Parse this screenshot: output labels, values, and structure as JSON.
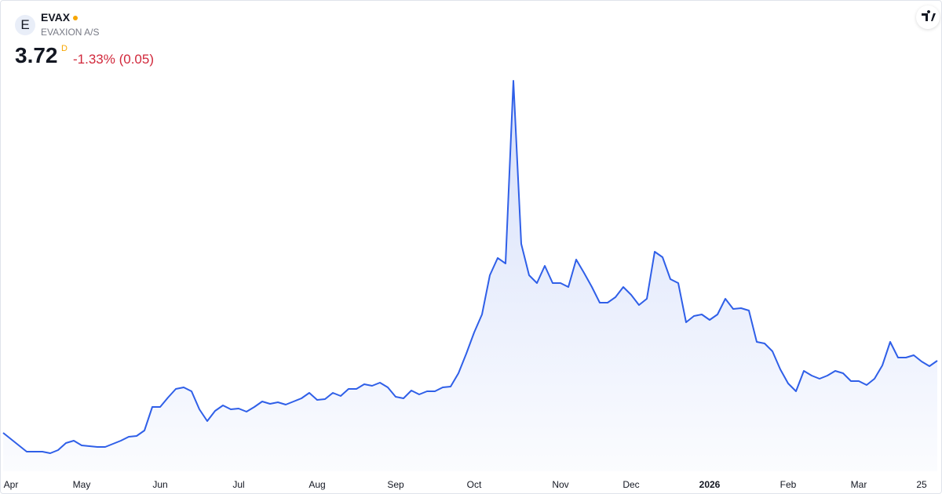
{
  "chart_data": {
    "type": "line",
    "avatar": "E",
    "title": "EVAX",
    "subtitle": "EVAXION A/S",
    "price": 3.72,
    "price_flag": "D",
    "change": "-1.33% (0.05)",
    "color": "#2f5fe8",
    "categories": [
      null,
      "Apr",
      null,
      null,
      null,
      null,
      null,
      null,
      null,
      null,
      "May",
      null,
      null,
      null,
      null,
      null,
      null,
      null,
      null,
      null,
      "Jun",
      null,
      null,
      null,
      null,
      null,
      null,
      null,
      null,
      null,
      "Jul",
      null,
      null,
      null,
      null,
      null,
      null,
      null,
      null,
      null,
      "Aug",
      null,
      null,
      null,
      null,
      null,
      null,
      null,
      null,
      null,
      "Sep",
      null,
      null,
      null,
      null,
      null,
      null,
      null,
      null,
      null,
      "Oct",
      null,
      null,
      null,
      null,
      null,
      null,
      null,
      null,
      null,
      null,
      "Nov",
      null,
      null,
      null,
      null,
      null,
      null,
      null,
      null,
      "Dec",
      null,
      null,
      null,
      null,
      null,
      null,
      null,
      null,
      null,
      "2026",
      null,
      null,
      null,
      null,
      null,
      null,
      null,
      null,
      null,
      "Feb",
      null,
      null,
      null,
      null,
      null,
      null,
      null,
      null,
      "Mar",
      null,
      null,
      null,
      null,
      null,
      null,
      null,
      "25",
      null,
      null
    ],
    "values": [
      1.88,
      1.72,
      1.56,
      1.4,
      1.4,
      1.4,
      1.36,
      1.44,
      1.62,
      1.68,
      1.56,
      1.54,
      1.52,
      1.52,
      1.6,
      1.68,
      1.78,
      1.8,
      1.94,
      2.54,
      2.54,
      2.78,
      3.0,
      3.04,
      2.94,
      2.48,
      2.18,
      2.44,
      2.58,
      2.48,
      2.5,
      2.42,
      2.54,
      2.68,
      2.62,
      2.66,
      2.6,
      2.68,
      2.76,
      2.9,
      2.72,
      2.74,
      2.9,
      2.82,
      3.0,
      3.0,
      3.12,
      3.08,
      3.16,
      3.04,
      2.8,
      2.76,
      2.96,
      2.86,
      2.94,
      2.94,
      3.04,
      3.06,
      3.4,
      3.9,
      4.44,
      4.9,
      5.9,
      6.34,
      6.2,
      10.86,
      6.7,
      5.9,
      5.7,
      6.14,
      5.7,
      5.7,
      5.6,
      6.3,
      5.96,
      5.6,
      5.2,
      5.2,
      5.34,
      5.6,
      5.4,
      5.14,
      5.3,
      6.5,
      6.36,
      5.8,
      5.7,
      4.7,
      4.86,
      4.9,
      4.76,
      4.9,
      5.3,
      5.04,
      5.06,
      5.0,
      4.2,
      4.16,
      3.96,
      3.5,
      3.14,
      2.94,
      3.46,
      3.34,
      3.26,
      3.34,
      3.46,
      3.4,
      3.2,
      3.2,
      3.1,
      3.26,
      3.6,
      4.2,
      3.8,
      3.8,
      3.86,
      3.7,
      3.58,
      3.72
    ]
  }
}
